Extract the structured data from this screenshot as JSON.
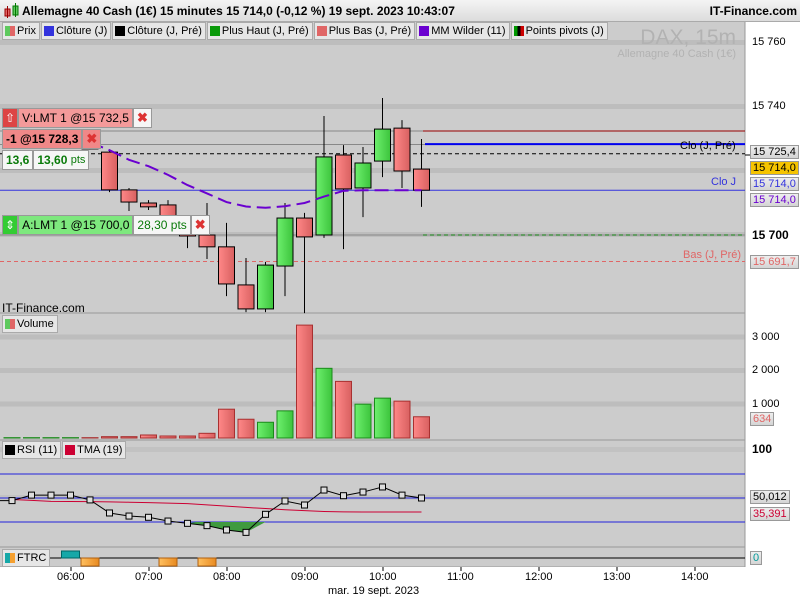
{
  "header": {
    "title": "Allemagne 40 Cash (1€) 15 minutes 15 714,0 (-0,12 %) 19 sept. 2023 10:43:07",
    "brand": "IT-Finance.com",
    "icon": "candlestick-icon"
  },
  "legend": [
    {
      "label": "Prix",
      "colors": [
        "#5ec95e",
        "#e06666"
      ]
    },
    {
      "label": "Clôture (J)",
      "colors": [
        "#3333dd"
      ]
    },
    {
      "label": "Clôture (J, Pré)",
      "colors": [
        "#000000"
      ]
    },
    {
      "label": "Plus Haut (J, Pré)",
      "colors": [
        "#0a9a0a"
      ]
    },
    {
      "label": "Plus Bas (J, Pré)",
      "colors": [
        "#e06666"
      ]
    },
    {
      "label": "MM Wilder (11)",
      "colors": [
        "#6a00d0"
      ]
    },
    {
      "label": "Points pivots (J)",
      "colors": [
        "#009900",
        "#000000",
        "#cc0000"
      ]
    }
  ],
  "watermark": {
    "symbol": "DAX, 15m",
    "name": "Allemagne 40 Cash (1€)"
  },
  "footer_brand": "IT-Finance.com",
  "orders": {
    "sell": {
      "label": "V:LMT  1 @15 732,5",
      "price": 15732.5
    },
    "position": {
      "label": "-1 @15 728,3",
      "price": 15728.3,
      "pl": "13,6",
      "pl_pts": "13,60",
      "pts": "pts"
    },
    "buy": {
      "label": "A:LMT  1 @15 700,0",
      "price": 15700.0,
      "dist": "28,30 pts"
    }
  },
  "lines": {
    "clo_j_pre": {
      "label": "Clo (J, Pré)",
      "value": "15 725,4",
      "price": 15725.4,
      "color": "#000000"
    },
    "current": {
      "value": "15 714,0",
      "price": 15714.0,
      "color": "#f5c400"
    },
    "clo_j": {
      "label": "Clo J",
      "value": "15 714,0",
      "price": 15714.0,
      "color": "#3333dd"
    },
    "mm": {
      "value": "15 714,0",
      "color": "#6a00d0"
    },
    "bas_j_pre": {
      "label": "Bas (J, Pré)",
      "value": "15 691,7",
      "price": 15691.7,
      "color": "#e06666"
    },
    "blue_level": {
      "price": 15728.4,
      "color": "#0000ee"
    },
    "pivot_level": {
      "price": 15732.5,
      "color": "#990000"
    }
  },
  "chart_data": [
    {
      "type": "candlestick",
      "title": "",
      "ylim": [
        15672,
        15764
      ],
      "yticks": [
        {
          "v": 15760,
          "label": "15 760"
        },
        {
          "v": 15740,
          "label": "15 740"
        },
        {
          "v": 15700,
          "label": "15 700"
        }
      ],
      "x": [
        "05:15",
        "05:30",
        "05:45",
        "06:00",
        "06:15",
        "06:30",
        "06:45",
        "07:00",
        "07:15",
        "07:30",
        "07:45",
        "08:00",
        "08:15",
        "08:30",
        "08:45",
        "09:00",
        "09:15",
        "09:30",
        "09:45",
        "10:00",
        "10:15",
        "10:30"
      ],
      "ohlc": [
        [
          15731,
          15731.5,
          15730.5,
          15731.2
        ],
        [
          15731.2,
          15732,
          15730.8,
          15731.5
        ],
        [
          15731.5,
          15732,
          15731,
          15731.7
        ],
        [
          15731.7,
          15732.2,
          15731.2,
          15731.9
        ],
        [
          15730.6,
          15731.5,
          15726.8,
          15726.9
        ],
        [
          15725.9,
          15726.6,
          15713.4,
          15714.1
        ],
        [
          15714.1,
          15714.7,
          15707.5,
          15710.3
        ],
        [
          15710,
          15710.9,
          15707.8,
          15708.8
        ],
        [
          15709.4,
          15710.9,
          15700.9,
          15701.6
        ],
        [
          15701.9,
          15702.5,
          15695.9,
          15699.7
        ],
        [
          15700,
          15710,
          15692.5,
          15696.3
        ],
        [
          15696.3,
          15703.8,
          15680.9,
          15684.7
        ],
        [
          15684.4,
          15692.8,
          15675.9,
          15676.9
        ],
        [
          15676.9,
          15691.6,
          15675.9,
          15690.6
        ],
        [
          15690.3,
          15710,
          15680.9,
          15705.3
        ],
        [
          15705.3,
          15706.9,
          15675.6,
          15699.4
        ],
        [
          15700,
          15737.2,
          15699.1,
          15724.4
        ],
        [
          15725,
          15728.1,
          15695.6,
          15714.4
        ],
        [
          15714.7,
          15727.5,
          15705.6,
          15722.5
        ],
        [
          15723.1,
          15742.8,
          15718.1,
          15733.1
        ],
        [
          15733.4,
          15735.9,
          15714.7,
          15720
        ],
        [
          15720.6,
          15730,
          15708.8,
          15714.0
        ]
      ],
      "mm_wilder_11": [
        null,
        null,
        null,
        null,
        15729,
        15726.5,
        15723.5,
        15721.5,
        15718.8,
        15715.6,
        15713,
        15710.3,
        15708.9,
        15708.5,
        15709,
        15710,
        15712,
        15713.8,
        15714,
        15714,
        15714,
        15714
      ]
    },
    {
      "type": "bar",
      "title": "Volume",
      "ylim": [
        0,
        3500
      ],
      "yticks": [
        {
          "v": 3000,
          "label": "3 000"
        },
        {
          "v": 2000,
          "label": "2 000"
        },
        {
          "v": 1000,
          "label": "1 000"
        }
      ],
      "values": [
        10,
        10,
        10,
        10,
        10,
        40,
        40,
        90,
        60,
        60,
        140,
        860,
        560,
        470,
        810,
        3370,
        2080,
        1690,
        1010,
        1190,
        1100,
        634
      ],
      "colors": [
        "g",
        "g",
        "g",
        "g",
        "r",
        "r",
        "r",
        "r",
        "r",
        "r",
        "r",
        "r",
        "r",
        "g",
        "g",
        "r",
        "g",
        "r",
        "g",
        "g",
        "r",
        "r"
      ],
      "last_label": "634"
    },
    {
      "type": "line",
      "title": "RSI (11)",
      "ylim": [
        0,
        100
      ],
      "yticks": [
        {
          "v": 100,
          "label": "100"
        }
      ],
      "levels": [
        75,
        50,
        25
      ],
      "series": [
        {
          "name": "RSI (11)",
          "color": "#000000",
          "values": [
            47.3,
            53,
            53,
            53,
            48,
            34.4,
            31.2,
            29.9,
            26,
            23.6,
            21.2,
            16.7,
            14.2,
            33,
            46.9,
            42.7,
            58.3,
            52.4,
            56.2,
            61.5,
            53,
            50.012
          ]
        },
        {
          "name": "TMA (19)",
          "color": "#cc0033",
          "values": [
            48.5,
            47.5,
            46.5,
            46.4,
            46.2,
            46,
            45.6,
            45.2,
            44.6,
            44.2,
            42.8,
            41.6,
            40.2,
            39,
            37.8,
            36.8,
            36,
            35.6,
            35.4,
            35.4,
            35.4,
            35.391
          ]
        }
      ],
      "last_labels": [
        "50,012",
        "35,391"
      ]
    },
    {
      "type": "bar",
      "title": "FTRC",
      "values": [
        0,
        0,
        0,
        1,
        -1,
        0,
        0,
        0,
        -1,
        0,
        -1,
        0,
        0,
        0,
        0,
        0,
        0,
        0,
        0,
        0,
        0,
        0
      ],
      "last_label": "0"
    }
  ],
  "time_axis": {
    "ticks": [
      "06:00",
      "07:00",
      "08:00",
      "09:00",
      "10:00",
      "11:00",
      "12:00",
      "13:00",
      "14:00"
    ],
    "date": "mar. 19 sept. 2023"
  }
}
